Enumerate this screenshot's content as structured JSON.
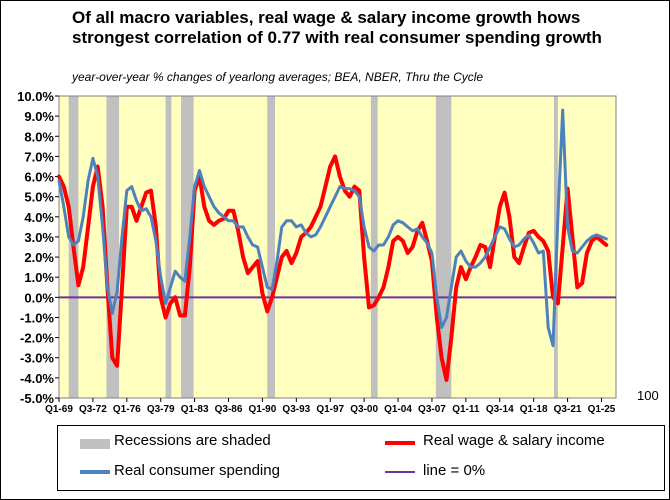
{
  "chart_data": {
    "type": "line",
    "title": "Of all macro variables, real wage & salary income growth hows strongest correlation of 0.77 with real consumer spending growth",
    "subtitle": "year-over-year % changes of yearlong averages; BEA, NBER, Thru the Cycle",
    "ylim": [
      -5.0,
      10.0
    ],
    "yticks": [
      "-5.0%",
      "-4.0%",
      "-3.0%",
      "-2.0%",
      "-1.0%",
      "0.0%",
      "1.0%",
      "2.0%",
      "3.0%",
      "4.0%",
      "5.0%",
      "6.0%",
      "7.0%",
      "8.0%",
      "9.0%",
      "10.0%"
    ],
    "xlim": [
      1969.0,
      2026.5
    ],
    "xtick_labels": [
      "Q1-69",
      "Q3-72",
      "Q1-76",
      "Q3-79",
      "Q1-83",
      "Q3-86",
      "Q1-90",
      "Q3-93",
      "Q1-97",
      "Q3-00",
      "Q1-04",
      "Q3-07",
      "Q1-11",
      "Q3-14",
      "Q1-18",
      "Q3-21",
      "Q1-25"
    ],
    "xticks_pos": [
      1969.0,
      1972.5,
      1976.0,
      1979.5,
      1983.0,
      1986.5,
      1990.0,
      1993.5,
      1997.0,
      2000.5,
      2004.0,
      2007.5,
      2011.0,
      2014.5,
      2018.0,
      2021.5,
      2025.0
    ],
    "recessions": [
      [
        1970.0,
        1971.0
      ],
      [
        1973.9,
        1975.2
      ],
      [
        1980.0,
        1980.6
      ],
      [
        1981.6,
        1982.9
      ],
      [
        1990.5,
        1991.3
      ],
      [
        2001.2,
        2001.9
      ],
      [
        2007.9,
        2009.5
      ],
      [
        2020.1,
        2020.5
      ]
    ],
    "series": [
      {
        "name": "Real wage & salary income",
        "color": "#ff0000",
        "x": [
          1969.0,
          1969.5,
          1970.0,
          1970.5,
          1971.0,
          1971.5,
          1972.0,
          1972.5,
          1973.0,
          1973.5,
          1974.0,
          1974.5,
          1975.0,
          1975.5,
          1976.0,
          1976.5,
          1977.0,
          1977.5,
          1978.0,
          1978.5,
          1979.0,
          1979.5,
          1980.0,
          1980.5,
          1981.0,
          1981.5,
          1982.0,
          1982.5,
          1983.0,
          1983.5,
          1984.0,
          1984.5,
          1985.0,
          1985.5,
          1986.0,
          1986.5,
          1987.0,
          1987.5,
          1988.0,
          1988.5,
          1989.0,
          1989.5,
          1990.0,
          1990.5,
          1991.0,
          1991.5,
          1992.0,
          1992.5,
          1993.0,
          1993.5,
          1994.0,
          1994.5,
          1995.0,
          1995.5,
          1996.0,
          1996.5,
          1997.0,
          1997.5,
          1998.0,
          1998.5,
          1999.0,
          1999.5,
          2000.0,
          2000.5,
          2001.0,
          2001.5,
          2002.0,
          2002.5,
          2003.0,
          2003.5,
          2004.0,
          2004.5,
          2005.0,
          2005.5,
          2006.0,
          2006.5,
          2007.0,
          2007.5,
          2008.0,
          2008.5,
          2009.0,
          2009.5,
          2010.0,
          2010.5,
          2011.0,
          2011.5,
          2012.0,
          2012.5,
          2013.0,
          2013.5,
          2014.0,
          2014.5,
          2015.0,
          2015.5,
          2016.0,
          2016.5,
          2017.0,
          2017.5,
          2018.0,
          2018.5,
          2019.0,
          2019.5,
          2020.0,
          2020.5,
          2021.0,
          2021.5,
          2022.0,
          2022.5,
          2023.0,
          2023.5,
          2024.0,
          2024.5,
          2025.0,
          2025.5
        ],
        "values": [
          6.0,
          5.5,
          4.5,
          2.5,
          0.6,
          1.5,
          3.5,
          5.5,
          6.5,
          4.5,
          0.5,
          -3.0,
          -3.4,
          0.5,
          4.5,
          4.5,
          3.8,
          4.5,
          5.2,
          5.3,
          3.5,
          0.0,
          -1.0,
          -0.3,
          0.0,
          -0.9,
          -0.9,
          1.5,
          5.3,
          6.0,
          4.5,
          3.8,
          3.6,
          3.8,
          3.9,
          4.3,
          4.3,
          3.3,
          2.0,
          1.2,
          1.5,
          1.8,
          0.2,
          -0.7,
          0.0,
          1.0,
          2.0,
          2.3,
          1.7,
          2.2,
          3.0,
          3.2,
          3.5,
          4.0,
          4.5,
          5.5,
          6.5,
          7.0,
          6.0,
          5.3,
          5.0,
          5.5,
          5.3,
          2.0,
          -0.5,
          -0.4,
          0.0,
          0.5,
          1.5,
          2.8,
          3.0,
          2.8,
          2.2,
          2.5,
          3.3,
          3.7,
          2.8,
          1.8,
          -1.0,
          -3.0,
          -4.1,
          -2.0,
          0.5,
          1.5,
          0.9,
          1.5,
          2.0,
          2.6,
          2.5,
          1.5,
          3.0,
          4.5,
          5.2,
          4.0,
          2.0,
          1.7,
          2.5,
          3.2,
          3.3,
          3.0,
          2.8,
          2.3,
          0.0,
          -0.3,
          2.5,
          5.4,
          3.0,
          0.5,
          0.7,
          2.2,
          2.8,
          3.0,
          2.8,
          2.6
        ]
      },
      {
        "name": "Real consumer spending",
        "color": "#4f81bd",
        "x": [
          1969.0,
          1969.5,
          1970.0,
          1970.5,
          1971.0,
          1971.5,
          1972.0,
          1972.5,
          1973.0,
          1973.5,
          1974.0,
          1974.5,
          1975.0,
          1975.5,
          1976.0,
          1976.5,
          1977.0,
          1977.5,
          1978.0,
          1978.5,
          1979.0,
          1979.5,
          1980.0,
          1980.5,
          1981.0,
          1981.5,
          1982.0,
          1982.5,
          1983.0,
          1983.5,
          1984.0,
          1984.5,
          1985.0,
          1985.5,
          1986.0,
          1986.5,
          1987.0,
          1987.5,
          1988.0,
          1988.5,
          1989.0,
          1989.5,
          1990.0,
          1990.5,
          1991.0,
          1991.5,
          1992.0,
          1992.5,
          1993.0,
          1993.5,
          1994.0,
          1994.5,
          1995.0,
          1995.5,
          1996.0,
          1996.5,
          1997.0,
          1997.5,
          1998.0,
          1998.5,
          1999.0,
          1999.5,
          2000.0,
          2000.5,
          2001.0,
          2001.5,
          2002.0,
          2002.5,
          2003.0,
          2003.5,
          2004.0,
          2004.5,
          2005.0,
          2005.5,
          2006.0,
          2006.5,
          2007.0,
          2007.5,
          2008.0,
          2008.5,
          2009.0,
          2009.5,
          2010.0,
          2010.5,
          2011.0,
          2011.5,
          2012.0,
          2012.5,
          2013.0,
          2013.5,
          2014.0,
          2014.5,
          2015.0,
          2015.5,
          2016.0,
          2016.5,
          2017.0,
          2017.5,
          2018.0,
          2018.5,
          2019.0,
          2019.5,
          2020.0,
          2020.5,
          2021.0,
          2021.5,
          2022.0,
          2022.5,
          2023.0,
          2023.5,
          2024.0,
          2024.5,
          2025.0,
          2025.5
        ],
        "values": [
          5.8,
          4.5,
          3.0,
          2.6,
          2.8,
          4.0,
          5.8,
          6.9,
          6.0,
          3.5,
          0.5,
          -0.8,
          0.3,
          3.0,
          5.3,
          5.5,
          4.8,
          4.3,
          4.4,
          4.0,
          2.8,
          1.0,
          -0.3,
          0.5,
          1.3,
          1.0,
          0.8,
          3.0,
          5.5,
          6.3,
          5.5,
          5.0,
          4.5,
          4.2,
          4.0,
          3.8,
          3.8,
          3.5,
          3.5,
          3.0,
          2.6,
          2.5,
          1.5,
          0.5,
          0.4,
          1.8,
          3.5,
          3.8,
          3.8,
          3.5,
          3.6,
          3.2,
          3.0,
          3.1,
          3.5,
          4.0,
          4.5,
          5.0,
          5.5,
          5.4,
          5.4,
          5.3,
          5.0,
          3.5,
          2.5,
          2.3,
          2.6,
          2.6,
          3.0,
          3.6,
          3.8,
          3.7,
          3.5,
          3.3,
          3.4,
          3.0,
          2.7,
          2.2,
          0.0,
          -1.5,
          -1.0,
          0.5,
          2.0,
          2.3,
          1.8,
          1.5,
          1.5,
          1.7,
          2.0,
          2.5,
          3.0,
          3.5,
          3.4,
          2.9,
          2.5,
          2.6,
          2.9,
          3.1,
          2.7,
          2.2,
          2.3,
          -1.5,
          -2.4,
          4.0,
          9.3,
          3.5,
          2.3,
          2.2,
          2.5,
          2.8,
          3.0,
          3.1,
          3.0,
          2.9
        ]
      }
    ],
    "zero_line": {
      "name": "line = 0%",
      "color": "#7030a0",
      "value": 0.0
    },
    "extra_label": "100"
  },
  "legend": {
    "recessions": "Recessions are shaded",
    "wage": "Real wage & salary income",
    "spending": "Real consumer spending",
    "zero": "line = 0%"
  },
  "colors": {
    "plot_bg": "#ffffc0",
    "recession": "#c0c0c0",
    "wage": "#ff0000",
    "spending": "#4f81bd",
    "zero": "#7030a0"
  }
}
